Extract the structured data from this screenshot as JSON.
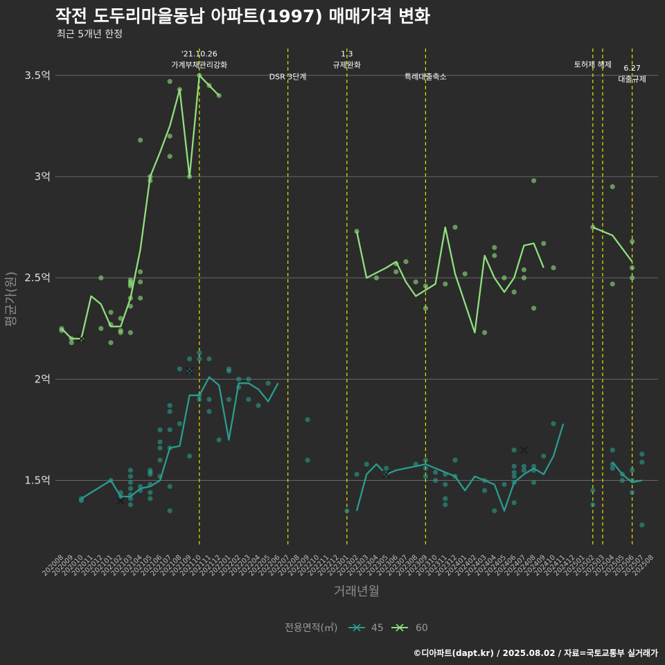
{
  "header": {
    "title": "작전 도두리마을동남 아파트(1997) 매매가격 변화",
    "subtitle": "최근 5개년 한정",
    "caption": "©디아파트(dapt.kr) / 2025.08.02 / 자료=국토교통부 실거래가"
  },
  "chart_data": {
    "type": "line",
    "title": "작전 도두리마을동남 아파트(1997) 매매가격 변화",
    "subtitle": "최근 5개년 한정",
    "xlabel": "거래년월",
    "ylabel": "평균가(원)",
    "ylim": [
      1.17,
      3.66
    ],
    "y_ticks": [
      {
        "value": 1.5,
        "label": "1.5억"
      },
      {
        "value": 2.0,
        "label": "2억"
      },
      {
        "value": 2.5,
        "label": "2.5억"
      },
      {
        "value": 3.0,
        "label": "3억"
      },
      {
        "value": 3.5,
        "label": "3.5억"
      }
    ],
    "x_ticks": [
      "202008",
      "202009",
      "202010",
      "202011",
      "202012",
      "202101",
      "202102",
      "202103",
      "202104",
      "202105",
      "202106",
      "202107",
      "202108",
      "202109",
      "202110",
      "202111",
      "202112",
      "202201",
      "202202",
      "202203",
      "202204",
      "202205",
      "202206",
      "202207",
      "202208",
      "202209",
      "202210",
      "202211",
      "202212",
      "202301",
      "202302",
      "202303",
      "202304",
      "202305",
      "202306",
      "202307",
      "202308",
      "202309",
      "202310",
      "202311",
      "202312",
      "202401",
      "202402",
      "202403",
      "202404",
      "202405",
      "202406",
      "202407",
      "202408",
      "202409",
      "202410",
      "202411",
      "202412",
      "202501",
      "202502",
      "202503",
      "202504",
      "202505",
      "202506",
      "202507",
      "202508"
    ],
    "grid": true,
    "legend": {
      "title": "전용면적(㎡)",
      "position": "bottom"
    },
    "colors": {
      "45": "#2a9d8f",
      "60": "#90e07e",
      "vline": "#e8e300"
    },
    "events": [
      {
        "x": "202110",
        "label": "'21.10.26\n가계부채관리강화",
        "y": 3.57
      },
      {
        "x": "202207",
        "label": "DSR 3단계",
        "y": 3.48
      },
      {
        "x": "202301",
        "label": "1.3\n규제완화",
        "y": 3.57
      },
      {
        "x": "202309",
        "label": "특례대출축소",
        "y": 3.48
      },
      {
        "x": "202502",
        "label": "토허제 해제",
        "y": 3.54
      },
      {
        "x": "202503",
        "label": "",
        "y": 3.5
      },
      {
        "x": "202506",
        "label": "6.27\n대출규제",
        "y": 3.5
      }
    ],
    "series": [
      {
        "name": "45",
        "line": [
          [
            null,
            null,
            1.41,
            null,
            null,
            1.5,
            1.42,
            1.42,
            1.46,
            1.47,
            1.5,
            1.66,
            1.67,
            1.92,
            1.92,
            2.01,
            1.97,
            1.7,
            1.98,
            1.98,
            1.95,
            1.89,
            1.98
          ],
          [
            null,
            1.35,
            1.53,
            1.58,
            1.53,
            1.55,
            null,
            null,
            1.58,
            1.56,
            null,
            1.52,
            1.45,
            1.52,
            null,
            1.48,
            1.35,
            1.49,
            1.53,
            1.56,
            1.53,
            1.62,
            1.78
          ],
          [
            1.59,
            1.53,
            1.49,
            1.5
          ]
        ],
        "line_start": [
          "202008",
          "202301",
          "202504"
        ],
        "points": [
          [
            "202010",
            1.4
          ],
          [
            "202010",
            1.41
          ],
          [
            "202101",
            1.5
          ],
          [
            "202102",
            1.42
          ],
          [
            "202102",
            1.44
          ],
          [
            "202103",
            1.38
          ],
          [
            "202103",
            1.41
          ],
          [
            "202103",
            1.43
          ],
          [
            "202103",
            1.46
          ],
          [
            "202103",
            1.49
          ],
          [
            "202103",
            1.52
          ],
          [
            "202103",
            1.55
          ],
          [
            "202104",
            1.45
          ],
          [
            "202104",
            1.47
          ],
          [
            "202105",
            1.41
          ],
          [
            "202105",
            1.44
          ],
          [
            "202105",
            1.48
          ],
          [
            "202105",
            1.53
          ],
          [
            "202105",
            1.54
          ],
          [
            "202105",
            1.55
          ],
          [
            "202106",
            1.52
          ],
          [
            "202106",
            1.6
          ],
          [
            "202106",
            1.66
          ],
          [
            "202106",
            1.69
          ],
          [
            "202106",
            1.75
          ],
          [
            "202107",
            1.35
          ],
          [
            "202107",
            1.47
          ],
          [
            "202107",
            1.66
          ],
          [
            "202107",
            1.75
          ],
          [
            "202107",
            1.84
          ],
          [
            "202107",
            1.87
          ],
          [
            "202108",
            1.78
          ],
          [
            "202108",
            2.05
          ],
          [
            "202109",
            1.62
          ],
          [
            "202109",
            2.04
          ],
          [
            "202109",
            2.1
          ],
          [
            "202110",
            1.9
          ],
          [
            "202110",
            1.92
          ],
          [
            "202110",
            2.1
          ],
          [
            "202110",
            2.13
          ],
          [
            "202111",
            1.84
          ],
          [
            "202111",
            1.9
          ],
          [
            "202111",
            2.1
          ],
          [
            "202112",
            1.7
          ],
          [
            "202201",
            1.9
          ],
          [
            "202201",
            2.04
          ],
          [
            "202201",
            2.05
          ],
          [
            "202202",
            1.96
          ],
          [
            "202202",
            2.0
          ],
          [
            "202203",
            1.9
          ],
          [
            "202203",
            2.0
          ],
          [
            "202204",
            1.87
          ],
          [
            "202205",
            1.98
          ],
          [
            "202209",
            1.6
          ],
          [
            "202209",
            1.8
          ],
          [
            "202301",
            1.35
          ],
          [
            "202302",
            1.53
          ],
          [
            "202303",
            1.58
          ],
          [
            "202305",
            1.53
          ],
          [
            "202305",
            1.56
          ],
          [
            "202308",
            1.58
          ],
          [
            "202309",
            1.52
          ],
          [
            "202309",
            1.56
          ],
          [
            "202309",
            1.6
          ],
          [
            "202310",
            1.5
          ],
          [
            "202310",
            1.54
          ],
          [
            "202311",
            1.38
          ],
          [
            "202311",
            1.41
          ],
          [
            "202311",
            1.48
          ],
          [
            "202311",
            1.53
          ],
          [
            "202312",
            1.52
          ],
          [
            "202312",
            1.6
          ],
          [
            "202403",
            1.45
          ],
          [
            "202403",
            1.5
          ],
          [
            "202404",
            1.35
          ],
          [
            "202405",
            1.48
          ],
          [
            "202406",
            1.39
          ],
          [
            "202406",
            1.49
          ],
          [
            "202406",
            1.52
          ],
          [
            "202406",
            1.54
          ],
          [
            "202406",
            1.57
          ],
          [
            "202406",
            1.65
          ],
          [
            "202407",
            1.55
          ],
          [
            "202407",
            1.57
          ],
          [
            "202408",
            1.49
          ],
          [
            "202408",
            1.55
          ],
          [
            "202408",
            1.57
          ],
          [
            "202409",
            1.62
          ],
          [
            "202410",
            1.78
          ],
          [
            "202502",
            1.38
          ],
          [
            "202502",
            1.45
          ],
          [
            "202504",
            1.56
          ],
          [
            "202504",
            1.58
          ],
          [
            "202504",
            1.65
          ],
          [
            "202505",
            1.5
          ],
          [
            "202505",
            1.53
          ],
          [
            "202506",
            1.44
          ],
          [
            "202506",
            1.5
          ],
          [
            "202506",
            1.55
          ],
          [
            "202507",
            1.28
          ],
          [
            "202507",
            1.59
          ],
          [
            "202507",
            1.63
          ]
        ],
        "cross": [
          [
            "202102",
            1.4
          ],
          [
            "202109",
            2.04
          ],
          [
            "202305",
            1.53
          ],
          [
            "202407",
            1.65
          ]
        ]
      },
      {
        "name": "60",
        "line": [
          [
            2.25,
            2.2,
            2.2,
            2.41,
            2.37,
            2.26,
            2.26,
            2.4,
            2.64,
            3.0,
            3.12,
            3.25,
            3.43,
            3.0,
            3.5,
            3.45,
            3.4
          ],
          [
            2.73,
            2.5,
            null,
            2.55,
            2.58,
            2.48,
            2.41,
            null,
            2.47,
            2.75,
            2.52,
            null,
            2.23,
            2.61,
            2.5,
            2.43,
            2.5,
            2.66,
            2.67,
            2.55
          ],
          [
            2.75,
            null,
            2.71,
            null,
            2.58
          ]
        ],
        "line_start": [
          "202008",
          "202302",
          "202502"
        ],
        "points": [
          [
            "202008",
            2.24
          ],
          [
            "202008",
            2.25
          ],
          [
            "202009",
            2.18
          ],
          [
            "202009",
            2.2
          ],
          [
            "202010",
            2.2
          ],
          [
            "202012",
            2.25
          ],
          [
            "202012",
            2.5
          ],
          [
            "202101",
            2.18
          ],
          [
            "202101",
            2.27
          ],
          [
            "202101",
            2.33
          ],
          [
            "202102",
            2.23
          ],
          [
            "202102",
            2.24
          ],
          [
            "202102",
            2.3
          ],
          [
            "202103",
            2.23
          ],
          [
            "202103",
            2.36
          ],
          [
            "202103",
            2.4
          ],
          [
            "202103",
            2.46
          ],
          [
            "202103",
            2.47
          ],
          [
            "202103",
            2.48
          ],
          [
            "202103",
            2.49
          ],
          [
            "202104",
            2.4
          ],
          [
            "202104",
            2.48
          ],
          [
            "202104",
            2.53
          ],
          [
            "202104",
            3.18
          ],
          [
            "202105",
            2.98
          ],
          [
            "202105",
            3.0
          ],
          [
            "202107",
            3.1
          ],
          [
            "202107",
            3.2
          ],
          [
            "202107",
            3.47
          ],
          [
            "202108",
            3.43
          ],
          [
            "202109",
            3.0
          ],
          [
            "202110",
            3.5
          ],
          [
            "202111",
            3.45
          ],
          [
            "202112",
            3.4
          ],
          [
            "202302",
            2.73
          ],
          [
            "202304",
            2.5
          ],
          [
            "202306",
            2.53
          ],
          [
            "202306",
            2.57
          ],
          [
            "202307",
            2.58
          ],
          [
            "202308",
            2.48
          ],
          [
            "202309",
            2.35
          ],
          [
            "202309",
            2.46
          ],
          [
            "202311",
            2.47
          ],
          [
            "202312",
            2.75
          ],
          [
            "202401",
            2.52
          ],
          [
            "202403",
            2.23
          ],
          [
            "202404",
            2.61
          ],
          [
            "202404",
            2.65
          ],
          [
            "202405",
            2.5
          ],
          [
            "202406",
            2.43
          ],
          [
            "202407",
            2.5
          ],
          [
            "202407",
            2.54
          ],
          [
            "202408",
            2.35
          ],
          [
            "202408",
            2.98
          ],
          [
            "202409",
            2.67
          ],
          [
            "202410",
            2.55
          ],
          [
            "202502",
            2.75
          ],
          [
            "202504",
            2.47
          ],
          [
            "202504",
            2.95
          ],
          [
            "202506",
            2.5
          ],
          [
            "202506",
            2.55
          ],
          [
            "202506",
            2.68
          ]
        ],
        "cross": [
          [
            "202010",
            2.2
          ]
        ]
      }
    ]
  }
}
